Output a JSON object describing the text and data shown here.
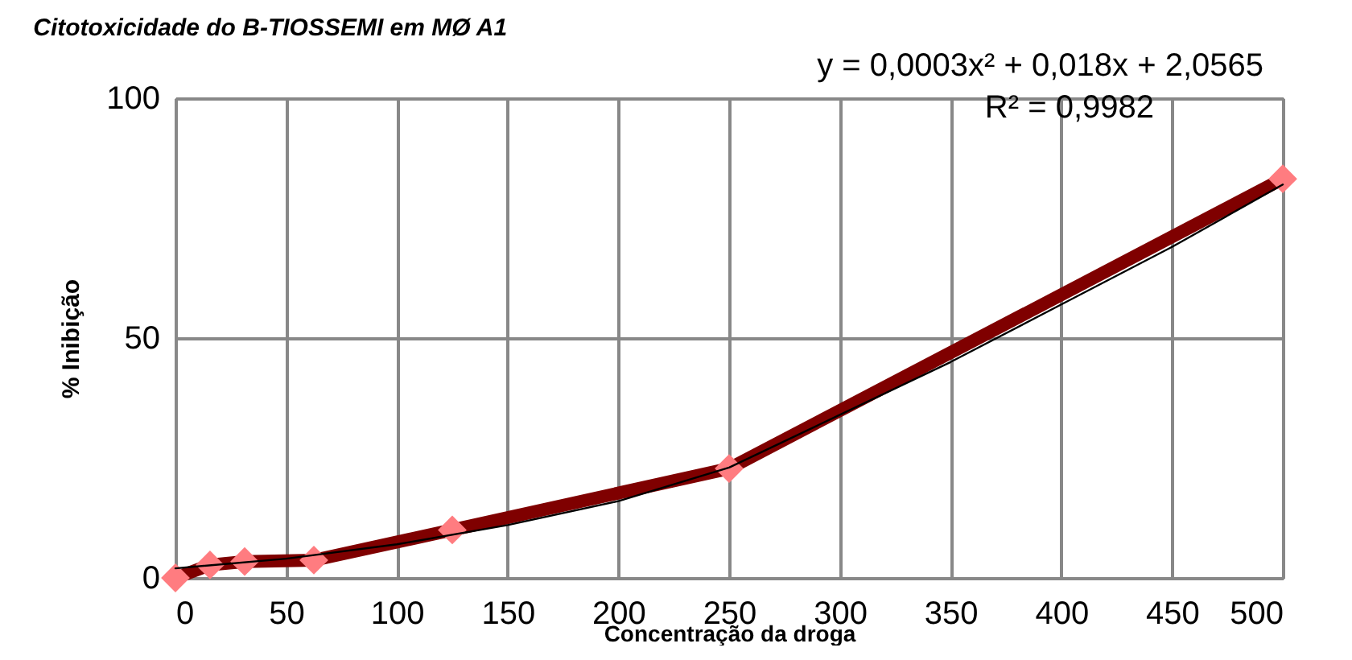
{
  "chart_data": {
    "type": "line",
    "title": "Citotoxicidade do B-TIOSSEMI em MØ A1",
    "xlabel": "Concentração da droga",
    "ylabel": "% Inibição",
    "annotations": [
      "y = 0,0003x² + 0,018x + 2,0565",
      "R² = 0,9982"
    ],
    "x": [
      0,
      15.6,
      31.25,
      62.5,
      125,
      250,
      500
    ],
    "series": [
      {
        "color": "#7f0000",
        "values": [
          0,
          2.7,
          3.4,
          3.7,
          10,
          22.8,
          83.2
        ]
      },
      {
        "type": "scatter",
        "marker": "diamond",
        "color": "#ff7c80",
        "values": [
          0,
          2.7,
          3.4,
          3.7,
          10,
          22.8,
          83.2
        ]
      },
      {
        "type": "line",
        "color": "#000000",
        "x": [
          0,
          50,
          100,
          150,
          200,
          250,
          300,
          350,
          400,
          450,
          500
        ],
        "values": [
          2,
          4,
          7,
          11,
          16,
          23,
          34,
          45,
          57,
          69,
          82
        ]
      }
    ],
    "xlim": [
      0,
      500
    ],
    "xticks": [
      0,
      50,
      100,
      150,
      200,
      250,
      300,
      350,
      400,
      450,
      500
    ],
    "ylim": [
      0,
      100
    ],
    "yticks": [
      0,
      50,
      100
    ],
    "grid": true
  }
}
